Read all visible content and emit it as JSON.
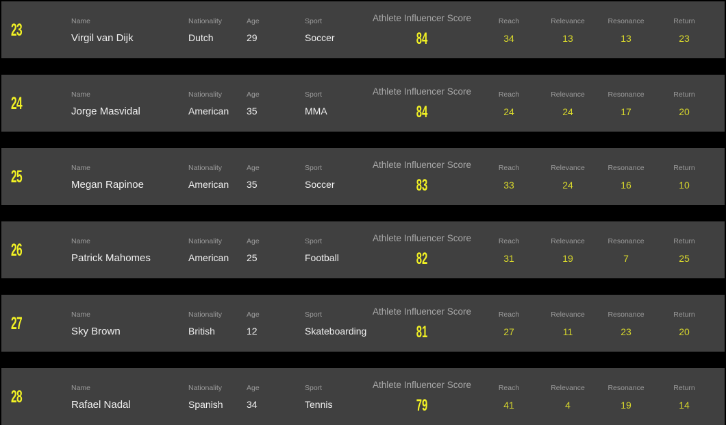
{
  "labels": {
    "name": "Name",
    "nationality": "Nationality",
    "age": "Age",
    "sport": "Sport",
    "score": "Athlete Influencer Score",
    "reach": "Reach",
    "relevance": "Relevance",
    "resonance": "Resonance",
    "return": "Return"
  },
  "colors": {
    "background": "#000000",
    "row": "#404040",
    "accent": "#f2f224"
  },
  "athletes": [
    {
      "rank": "23",
      "name": "Virgil van Dijk",
      "nationality": "Dutch",
      "age": "29",
      "sport": "Soccer",
      "score": "84",
      "reach": "34",
      "relevance": "13",
      "resonance": "13",
      "return": "23"
    },
    {
      "rank": "24",
      "name": "Jorge Masvidal",
      "nationality": "American",
      "age": "35",
      "sport": "MMA",
      "score": "84",
      "reach": "24",
      "relevance": "24",
      "resonance": "17",
      "return": "20"
    },
    {
      "rank": "25",
      "name": "Megan Rapinoe",
      "nationality": "American",
      "age": "35",
      "sport": "Soccer",
      "score": "83",
      "reach": "33",
      "relevance": "24",
      "resonance": "16",
      "return": "10"
    },
    {
      "rank": "26",
      "name": "Patrick Mahomes",
      "nationality": "American",
      "age": "25",
      "sport": "Football",
      "score": "82",
      "reach": "31",
      "relevance": "19",
      "resonance": "7",
      "return": "25"
    },
    {
      "rank": "27",
      "name": "Sky Brown",
      "nationality": "British",
      "age": "12",
      "sport": "Skateboarding",
      "score": "81",
      "reach": "27",
      "relevance": "11",
      "resonance": "23",
      "return": "20"
    },
    {
      "rank": "28",
      "name": "Rafael Nadal",
      "nationality": "Spanish",
      "age": "34",
      "sport": "Tennis",
      "score": "79",
      "reach": "41",
      "relevance": "4",
      "resonance": "19",
      "return": "14"
    }
  ]
}
